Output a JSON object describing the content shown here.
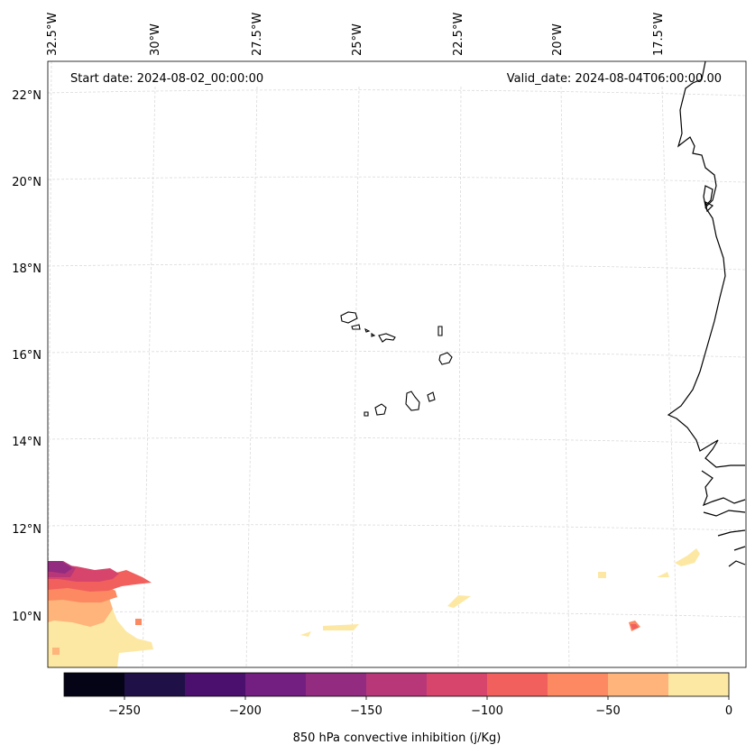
{
  "header": {
    "start_date": "Start date: 2024-08-02_00:00:00",
    "valid_date": "Valid_date: 2024-08-04T06:00:00.00"
  },
  "map": {
    "longitude_labels": [
      "32.5°W",
      "30°W",
      "27.5°W",
      "25°W",
      "22.5°W",
      "20°W",
      "17.5°W"
    ],
    "latitude_labels": [
      "22°N",
      "20°N",
      "18°N",
      "16°N",
      "14°N",
      "12°N",
      "10°N"
    ],
    "grid": true,
    "coastline_color": "#000000"
  },
  "colorbar": {
    "title": "850 hPa convective inhibition (j/Kg)",
    "tick_labels": [
      "−250",
      "−200",
      "−150",
      "−100",
      "−50",
      "0"
    ],
    "levels": [
      -275,
      -250,
      -225,
      -200,
      -175,
      -150,
      -125,
      -100,
      -75,
      -50,
      -25,
      0
    ],
    "colors": [
      "#050416",
      "#1f1147",
      "#4b0f6e",
      "#721f81",
      "#932b80",
      "#b73779",
      "#d8456c",
      "#f1605d",
      "#fc8961",
      "#feb47b",
      "#fde8a3"
    ]
  }
}
